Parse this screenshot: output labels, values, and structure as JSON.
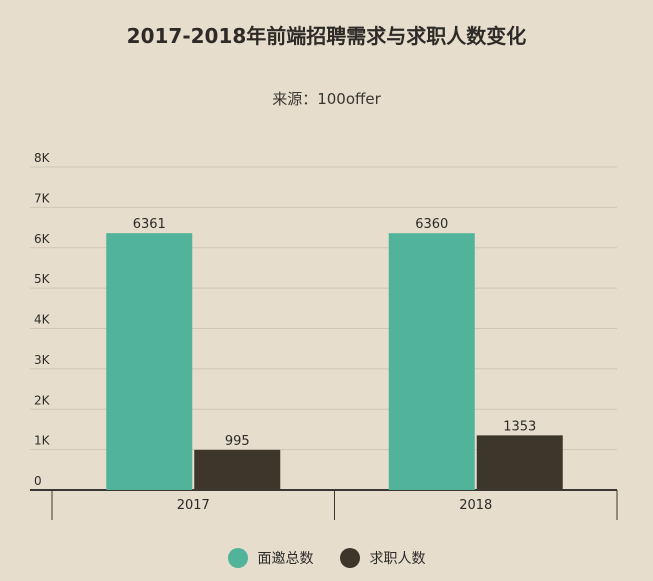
{
  "chart_data": {
    "type": "bar",
    "title": "2017-2018年前端招聘需求与求职人数变化",
    "subtitle": "来源：100offer",
    "categories": [
      "2017",
      "2018"
    ],
    "series": [
      {
        "name": "面邀总数",
        "values": [
          6361,
          6360
        ],
        "color": "#52b39b"
      },
      {
        "name": "求职人数",
        "values": [
          995,
          1353
        ],
        "color": "#3d362b"
      }
    ],
    "ylim": [
      0,
      8000
    ],
    "yticks": [
      0,
      1000,
      2000,
      3000,
      4000,
      5000,
      6000,
      7000,
      8000
    ],
    "ytick_labels": [
      "0",
      "1K",
      "2K",
      "3K",
      "4K",
      "5K",
      "6K",
      "7K",
      "8K"
    ],
    "grid": true,
    "legend_position": "bottom-center",
    "colors": {
      "background": "#e6ddcd",
      "grid": "#cfc6b6",
      "axis": "#3a3631",
      "text": "#2e2b27"
    }
  }
}
